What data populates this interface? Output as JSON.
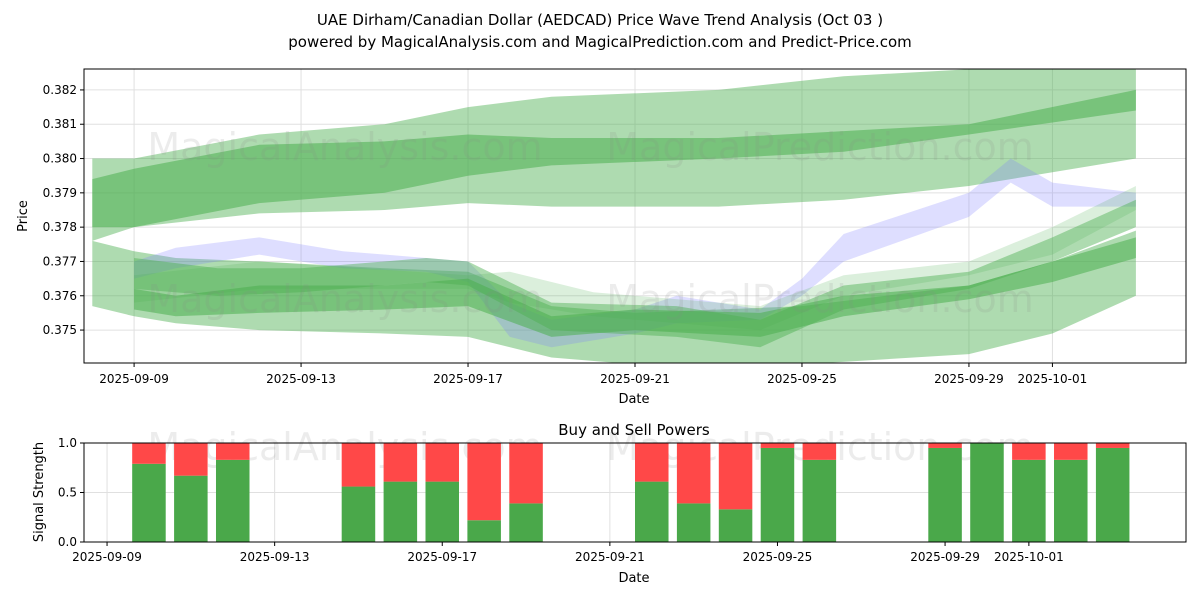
{
  "title_line1": "UAE Dirham/Canadian Dollar (AEDCAD) Price Wave Trend Analysis (Oct 03 )",
  "title_line2": "powered by MagicalAnalysis.com and MagicalPrediction.com and Predict-Price.com",
  "watermarks": [
    "MagicalAnalysis.com",
    "MagicalPrediction.com"
  ],
  "colors": {
    "green": "#4caf50",
    "blue": "#7b7bff",
    "buy": "#4aa84a",
    "sell": "#ff4848"
  },
  "chart_data": [
    {
      "type": "area",
      "xlabel": "Date",
      "ylabel": "Price",
      "xlim": [
        "2025-09-07.8",
        "2025-10-04.2"
      ],
      "ylim": [
        0.37404,
        0.38261
      ],
      "xticks": [
        "2025-09-09",
        "2025-09-13",
        "2025-09-17",
        "2025-09-21",
        "2025-09-25",
        "2025-09-29",
        "2025-10-01"
      ],
      "yticks": [
        "0.375",
        "0.376",
        "0.377",
        "0.378",
        "0.379",
        "0.380",
        "0.381",
        "0.382"
      ],
      "grid": true,
      "bands": [
        {
          "color": "green",
          "opacity": 0.45,
          "x": [
            "2025-09-08",
            "2025-09-09",
            "2025-09-12",
            "2025-09-15",
            "2025-09-17",
            "2025-09-19",
            "2025-09-23",
            "2025-09-26",
            "2025-09-29",
            "2025-10-03"
          ],
          "upper": [
            0.38,
            0.38,
            0.3807,
            0.381,
            0.3815,
            0.3818,
            0.382,
            0.3824,
            0.3826,
            0.3827
          ],
          "lower": [
            0.3776,
            0.378,
            0.3784,
            0.3785,
            0.3787,
            0.3786,
            0.3786,
            0.3788,
            0.3792,
            0.38
          ]
        },
        {
          "color": "green",
          "opacity": 0.55,
          "x": [
            "2025-09-08",
            "2025-09-09",
            "2025-09-12",
            "2025-09-15",
            "2025-09-17",
            "2025-09-19",
            "2025-09-23",
            "2025-09-26",
            "2025-09-29",
            "2025-10-03"
          ],
          "upper": [
            0.3794,
            0.3797,
            0.3804,
            0.3805,
            0.3807,
            0.3806,
            0.3806,
            0.3808,
            0.381,
            0.382
          ],
          "lower": [
            0.378,
            0.378,
            0.3787,
            0.379,
            0.3795,
            0.3798,
            0.38,
            0.3802,
            0.3807,
            0.3814
          ]
        },
        {
          "color": "green",
          "opacity": 0.45,
          "x": [
            "2025-09-08",
            "2025-09-09",
            "2025-09-10",
            "2025-09-12",
            "2025-09-15",
            "2025-09-17",
            "2025-09-19",
            "2025-09-21",
            "2025-09-25",
            "2025-09-29",
            "2025-10-01",
            "2025-10-03"
          ],
          "upper": [
            0.3776,
            0.3773,
            0.3771,
            0.377,
            0.3768,
            0.3767,
            0.3757,
            0.3755,
            0.3757,
            0.3763,
            0.377,
            0.3779
          ],
          "lower": [
            0.3757,
            0.3754,
            0.3752,
            0.375,
            0.3749,
            0.3748,
            0.3742,
            0.374,
            0.374,
            0.3743,
            0.3749,
            0.376
          ]
        },
        {
          "color": "blue",
          "opacity": 0.25,
          "x": [
            "2025-09-09",
            "2025-09-10",
            "2025-09-12",
            "2025-09-14",
            "2025-09-16",
            "2025-09-17",
            "2025-09-18",
            "2025-09-19",
            "2025-09-21",
            "2025-09-22",
            "2025-09-24",
            "2025-09-25",
            "2025-09-26",
            "2025-09-29",
            "2025-09-30",
            "2025-10-01",
            "2025-10-03"
          ],
          "upper": [
            0.377,
            0.3774,
            0.3777,
            0.3773,
            0.3771,
            0.377,
            0.3758,
            0.3753,
            0.3756,
            0.376,
            0.3756,
            0.3765,
            0.3778,
            0.379,
            0.38,
            0.3793,
            0.379
          ],
          "lower": [
            0.3765,
            0.3768,
            0.3772,
            0.3768,
            0.3767,
            0.3764,
            0.3748,
            0.3745,
            0.3749,
            0.3752,
            0.3753,
            0.376,
            0.377,
            0.3783,
            0.3793,
            0.3786,
            0.3786
          ]
        },
        {
          "color": "green",
          "opacity": 0.2,
          "x": [
            "2025-09-09",
            "2025-09-12",
            "2025-09-17",
            "2025-09-18",
            "2025-09-20",
            "2025-09-24",
            "2025-09-26",
            "2025-09-29",
            "2025-10-01",
            "2025-10-03"
          ],
          "upper": [
            0.3766,
            0.377,
            0.3766,
            0.3767,
            0.3761,
            0.3757,
            0.3766,
            0.377,
            0.378,
            0.3792
          ],
          "lower": [
            0.3758,
            0.3762,
            0.3762,
            0.3758,
            0.3754,
            0.375,
            0.376,
            0.3766,
            0.3772,
            0.3785
          ]
        },
        {
          "color": "green",
          "opacity": 0.45,
          "x": [
            "2025-09-09",
            "2025-09-11",
            "2025-09-13",
            "2025-09-16",
            "2025-09-17",
            "2025-09-19",
            "2025-09-22",
            "2025-09-24",
            "2025-09-26",
            "2025-09-29",
            "2025-10-01",
            "2025-10-03"
          ],
          "upper": [
            0.3771,
            0.3768,
            0.3768,
            0.3771,
            0.377,
            0.3758,
            0.3757,
            0.3753,
            0.3763,
            0.3767,
            0.3777,
            0.3788
          ],
          "lower": [
            0.3762,
            0.376,
            0.3761,
            0.3764,
            0.3763,
            0.375,
            0.3748,
            0.3745,
            0.3756,
            0.3762,
            0.377,
            0.378
          ]
        },
        {
          "color": "green",
          "opacity": 0.55,
          "x": [
            "2025-09-09",
            "2025-09-10",
            "2025-09-12",
            "2025-09-15",
            "2025-09-17",
            "2025-09-19",
            "2025-09-21",
            "2025-09-24",
            "2025-09-26",
            "2025-09-29",
            "2025-10-01",
            "2025-10-03"
          ],
          "upper": [
            0.3762,
            0.376,
            0.3763,
            0.3763,
            0.3765,
            0.3754,
            0.3756,
            0.3755,
            0.376,
            0.3763,
            0.377,
            0.3777
          ],
          "lower": [
            0.3756,
            0.3754,
            0.3755,
            0.3756,
            0.3757,
            0.3748,
            0.375,
            0.3748,
            0.3754,
            0.3759,
            0.3764,
            0.3771
          ]
        }
      ]
    },
    {
      "type": "bar",
      "title": "Buy and Sell Powers",
      "xlabel": "Date",
      "ylabel": "Signal Strength",
      "xlim": [
        "2025-09-08.45",
        "2025-10-04.75"
      ],
      "ylim": [
        0,
        1
      ],
      "yticks": [
        "0.0",
        "0.5",
        "1.0"
      ],
      "xticks": [
        "2025-09-09",
        "2025-09-13",
        "2025-09-17",
        "2025-09-21",
        "2025-09-25",
        "2025-09-29",
        "2025-10-01"
      ],
      "categories": [
        "2025-09-10",
        "2025-09-11",
        "2025-09-12",
        "2025-09-15",
        "2025-09-16",
        "2025-09-17",
        "2025-09-18",
        "2025-09-19",
        "2025-09-22",
        "2025-09-23",
        "2025-09-24",
        "2025-09-25",
        "2025-09-26",
        "2025-09-29",
        "2025-09-30",
        "2025-10-01",
        "2025-10-02",
        "2025-10-03"
      ],
      "series": [
        {
          "name": "Buy",
          "values": [
            0.79,
            0.67,
            0.83,
            0.56,
            0.61,
            0.61,
            0.22,
            0.39,
            0.61,
            0.39,
            0.33,
            0.95,
            0.83,
            0.95,
            1.0,
            0.83,
            0.83,
            0.95
          ]
        },
        {
          "name": "Sell",
          "values": [
            0.21,
            0.33,
            0.17,
            0.44,
            0.39,
            0.39,
            0.78,
            0.61,
            0.39,
            0.61,
            0.67,
            0.05,
            0.17,
            0.05,
            0.0,
            0.17,
            0.17,
            0.05
          ]
        }
      ]
    }
  ]
}
